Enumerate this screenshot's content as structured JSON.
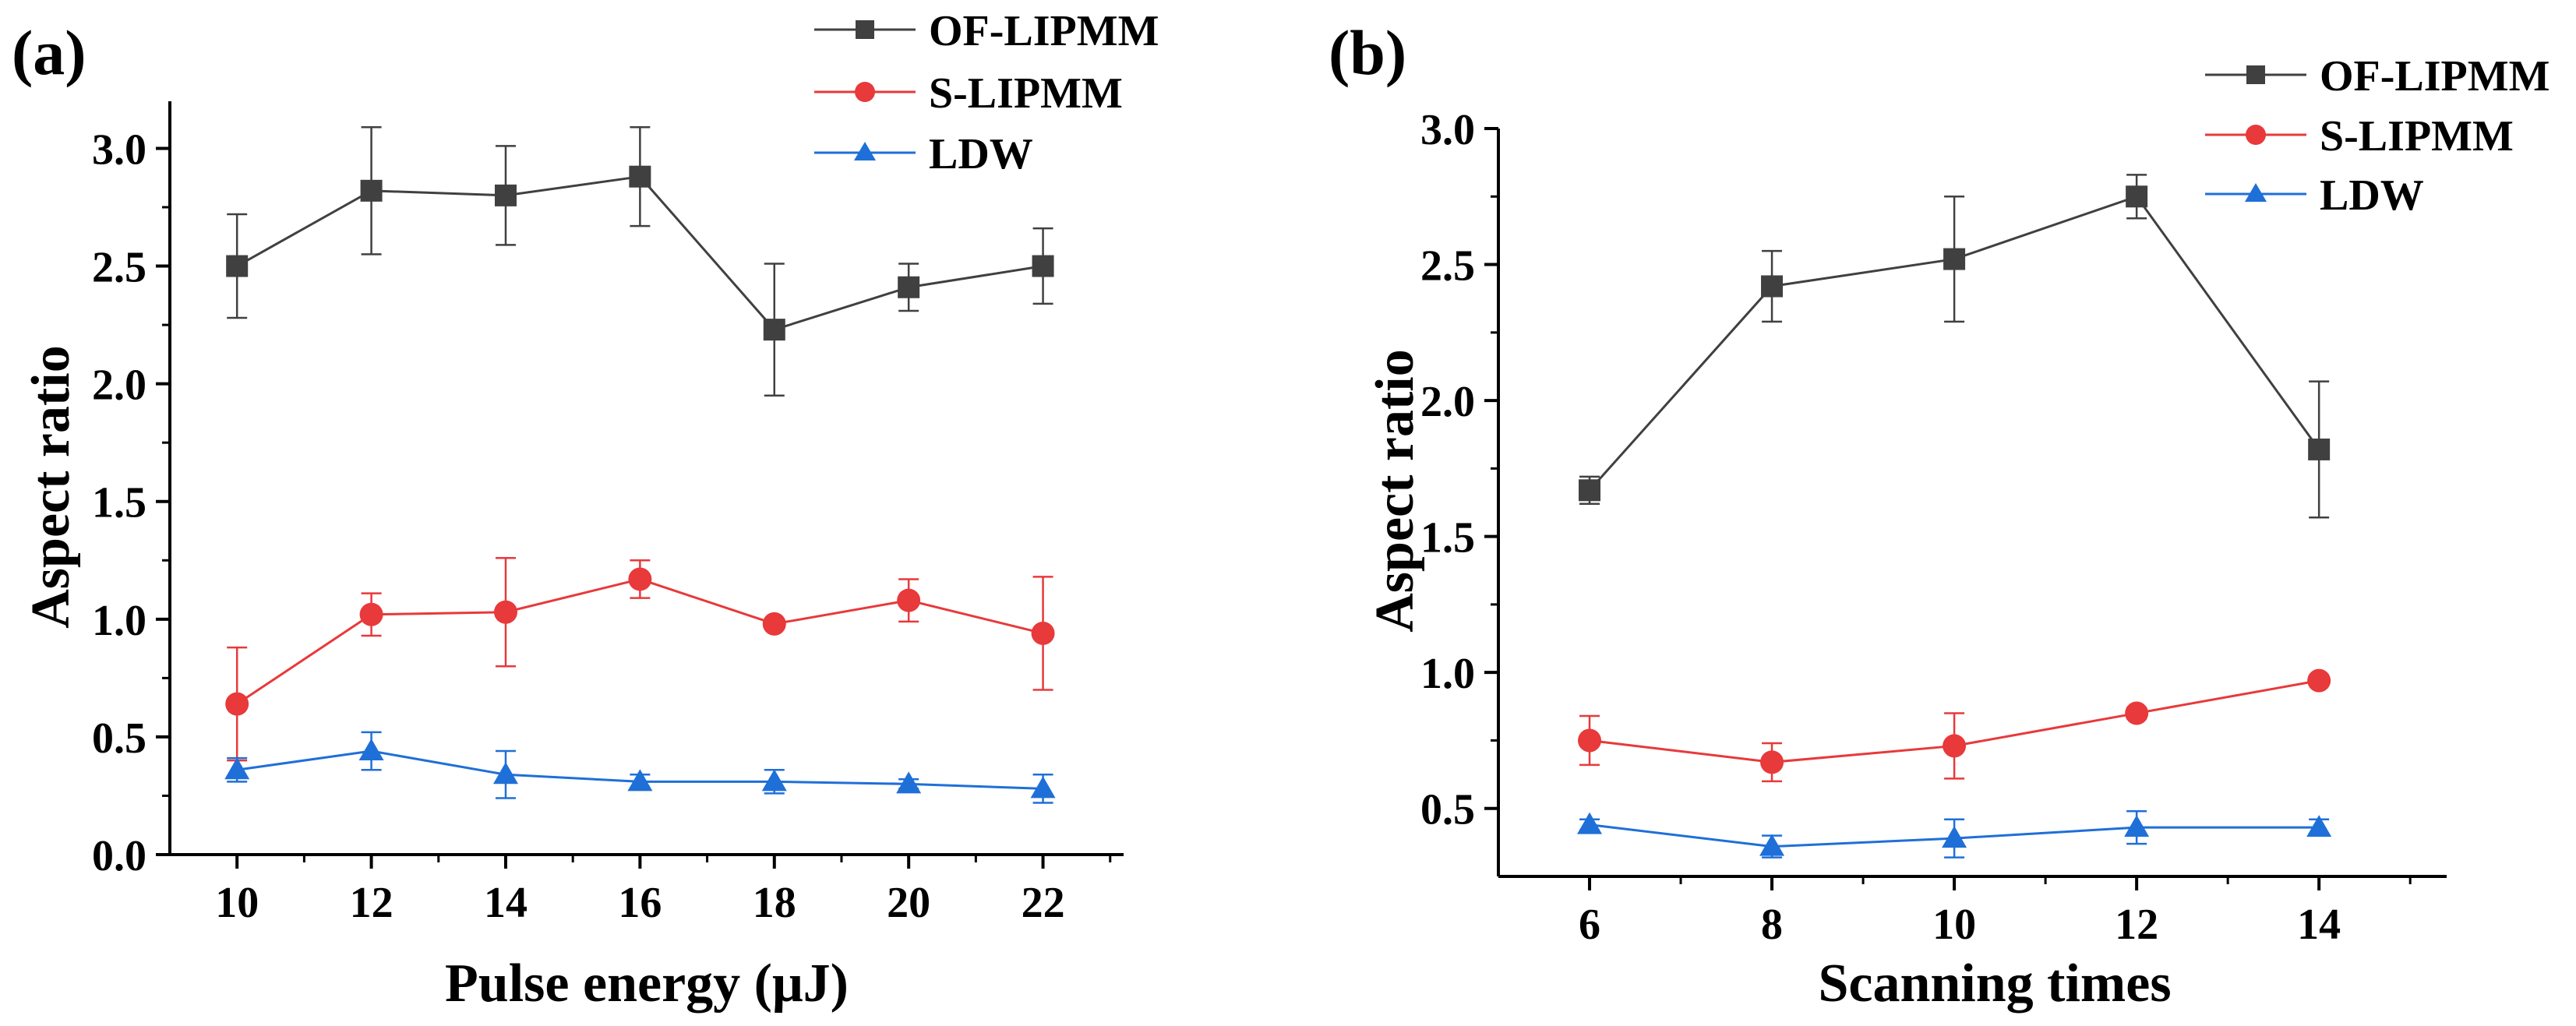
{
  "panels": [
    {
      "panel_label": "(a)",
      "legend": [
        "OF-LIPMM",
        "S-LIPMM",
        "LDW"
      ]
    },
    {
      "panel_label": "(b)",
      "legend": [
        "OF-LIPMM",
        "S-LIPMM",
        "LDW"
      ]
    }
  ],
  "chart_data": [
    {
      "type": "line",
      "title": "(a)",
      "xlabel": "Pulse energy (μJ)",
      "ylabel": "Aspect ratio",
      "x": [
        10,
        12,
        14,
        16,
        18,
        20,
        22
      ],
      "xticks": [
        10,
        12,
        14,
        16,
        18,
        20,
        22
      ],
      "xlim": [
        9,
        23.2
      ],
      "yticks": [
        0.0,
        0.5,
        1.0,
        1.5,
        2.0,
        2.5,
        3.0
      ],
      "ylim": [
        0,
        3.2
      ],
      "legend_position": "top-right",
      "series": [
        {
          "name": "OF-LIPMM",
          "marker": "square",
          "color": "#404040",
          "values": [
            2.5,
            2.82,
            2.8,
            2.88,
            2.23,
            2.41,
            2.5
          ],
          "errors": [
            0.22,
            0.27,
            0.21,
            0.21,
            0.28,
            0.1,
            0.16
          ]
        },
        {
          "name": "S-LIPMM",
          "marker": "circle",
          "color": "#e8393b",
          "values": [
            0.64,
            1.02,
            1.03,
            1.17,
            0.98,
            1.08,
            0.94
          ],
          "errors": [
            0.24,
            0.09,
            0.23,
            0.08,
            0.02,
            0.09,
            0.24
          ]
        },
        {
          "name": "LDW",
          "marker": "triangle",
          "color": "#1f6fd8",
          "values": [
            0.36,
            0.44,
            0.34,
            0.31,
            0.31,
            0.3,
            0.28
          ],
          "errors": [
            0.05,
            0.08,
            0.1,
            0.03,
            0.05,
            0.02,
            0.06
          ]
        }
      ]
    },
    {
      "type": "line",
      "title": "(b)",
      "xlabel": "Scanning times",
      "ylabel": "Aspect ratio",
      "x": [
        6,
        8,
        10,
        12,
        14
      ],
      "xticks": [
        6,
        8,
        10,
        12,
        14
      ],
      "xlim": [
        5,
        15.4
      ],
      "yticks": [
        0.5,
        1.0,
        1.5,
        2.0,
        2.5,
        3.0
      ],
      "ylim": [
        0.25,
        3.0
      ],
      "legend_position": "top-right",
      "series": [
        {
          "name": "OF-LIPMM",
          "marker": "square",
          "color": "#404040",
          "values": [
            1.67,
            2.42,
            2.52,
            2.75,
            1.82
          ],
          "errors": [
            0.05,
            0.13,
            0.23,
            0.08,
            0.25
          ]
        },
        {
          "name": "S-LIPMM",
          "marker": "circle",
          "color": "#e8393b",
          "values": [
            0.75,
            0.67,
            0.73,
            0.85,
            0.97
          ],
          "errors": [
            0.09,
            0.07,
            0.12,
            0.02,
            0.01
          ]
        },
        {
          "name": "LDW",
          "marker": "triangle",
          "color": "#1f6fd8",
          "values": [
            0.44,
            0.36,
            0.39,
            0.43,
            0.43
          ],
          "errors": [
            0.02,
            0.04,
            0.07,
            0.06,
            0.03
          ]
        }
      ]
    }
  ]
}
